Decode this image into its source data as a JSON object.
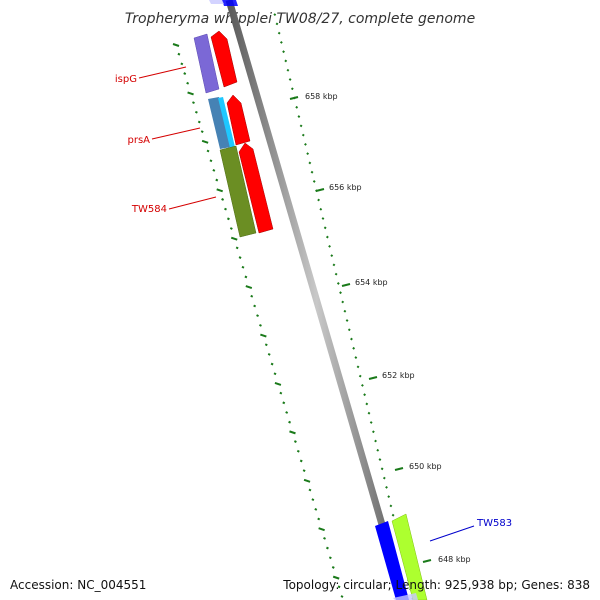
{
  "title": "Tropheryma whipplei TW08/27, complete genome",
  "footer": {
    "accession": "Accession: NC_004551",
    "summary": "Topology: circular; Length: 925,938 bp; Genes: 838"
  },
  "ticks": [
    {
      "label": "658 kbp"
    },
    {
      "label": "656 kbp"
    },
    {
      "label": "654 kbp"
    },
    {
      "label": "652 kbp"
    },
    {
      "label": "650 kbp"
    },
    {
      "label": "648 kbp"
    }
  ],
  "gene_labels": [
    {
      "label": "ispG",
      "color": "#d40000"
    },
    {
      "label": "prsA",
      "color": "#d40000"
    },
    {
      "label": "TW584",
      "color": "#d40000"
    },
    {
      "label": "TW583",
      "color": "#0000cc"
    }
  ],
  "colors": {
    "backbone": "#808080",
    "forward_gene": "#ff0000",
    "reverse_gene": "#0000ff",
    "ispG_feature": "#7b68d6",
    "prsA_feature_1": "#4682b4",
    "prsA_feature_2": "#1ec8ff",
    "TW584_feature": "#6b8e23",
    "TW583_feature": "#adff2f",
    "tick_marks": "#1a7a1a"
  }
}
